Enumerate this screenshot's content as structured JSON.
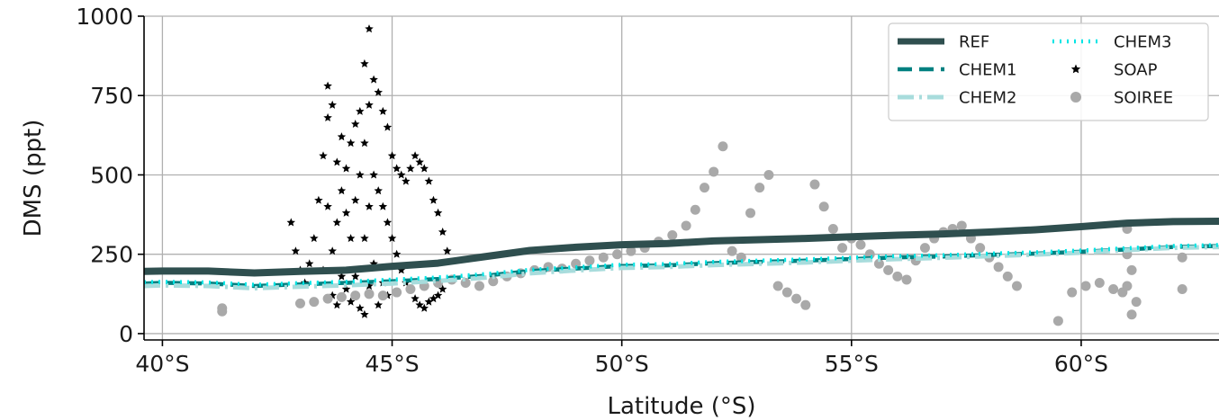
{
  "chart_data": {
    "type": "line",
    "title": "",
    "xlabel": "Latitude (°S)",
    "ylabel": "DMS (ppt)",
    "xlim": [
      39.6,
      63.0
    ],
    "ylim": [
      -20,
      1000
    ],
    "x_axis_reversed": false,
    "grid": true,
    "legend_position": "top-right",
    "legend_columns": 2,
    "xticks": [
      {
        "value": 40,
        "label": "40°S"
      },
      {
        "value": 45,
        "label": "45°S"
      },
      {
        "value": 50,
        "label": "50°S"
      },
      {
        "value": 55,
        "label": "55°S"
      },
      {
        "value": 60,
        "label": "60°S"
      }
    ],
    "yticks": [
      {
        "value": 0,
        "label": "0"
      },
      {
        "value": 250,
        "label": "250"
      },
      {
        "value": 500,
        "label": "500"
      },
      {
        "value": 750,
        "label": "750"
      },
      {
        "value": 1000,
        "label": "1000"
      }
    ],
    "series": [
      {
        "name": "REF",
        "kind": "line",
        "style": "solid",
        "color": "#2f4f4f",
        "x": [
          39.6,
          40.0,
          41.0,
          42.0,
          43.0,
          44.0,
          45.0,
          46.0,
          47.0,
          48.0,
          49.0,
          50.0,
          51.0,
          52.0,
          53.0,
          54.0,
          55.0,
          56.0,
          57.0,
          58.0,
          59.0,
          60.0,
          61.0,
          62.0,
          63.0
        ],
        "y": [
          196,
          197,
          197,
          191,
          196,
          200,
          212,
          222,
          242,
          262,
          272,
          280,
          284,
          292,
          296,
          300,
          305,
          310,
          314,
          320,
          327,
          337,
          348,
          353,
          354
        ]
      },
      {
        "name": "CHEM1",
        "kind": "line",
        "style": "dashed",
        "color": "#008080",
        "x": [
          39.6,
          40.0,
          41.0,
          42.0,
          43.0,
          44.0,
          45.0,
          46.0,
          47.0,
          48.0,
          49.0,
          50.0,
          51.0,
          52.0,
          53.0,
          54.0,
          55.0,
          56.0,
          57.0,
          58.0,
          59.0,
          60.0,
          61.0,
          62.0,
          63.0
        ],
        "y": [
          158,
          160,
          158,
          150,
          155,
          160,
          165,
          172,
          182,
          197,
          205,
          213,
          215,
          222,
          226,
          230,
          235,
          240,
          243,
          248,
          252,
          258,
          265,
          273,
          276
        ]
      },
      {
        "name": "CHEM2",
        "kind": "line",
        "style": "dashdot",
        "color": "#a8dcdc",
        "x": [
          39.6,
          40.0,
          41.0,
          42.0,
          43.0,
          44.0,
          45.0,
          46.0,
          47.0,
          48.0,
          49.0,
          50.0,
          51.0,
          52.0,
          53.0,
          54.0,
          55.0,
          56.0,
          57.0,
          58.0,
          59.0,
          60.0,
          61.0,
          62.0,
          63.0
        ],
        "y": [
          150,
          152,
          150,
          143,
          148,
          152,
          158,
          166,
          176,
          190,
          199,
          207,
          210,
          216,
          220,
          224,
          230,
          235,
          239,
          244,
          249,
          255,
          263,
          270,
          273
        ]
      },
      {
        "name": "CHEM3",
        "kind": "line",
        "style": "dotted",
        "color": "#00e5e5",
        "x": [
          39.6,
          40.0,
          41.0,
          42.0,
          43.0,
          44.0,
          45.0,
          46.0,
          47.0,
          48.0,
          49.0,
          50.0,
          51.0,
          52.0,
          53.0,
          54.0,
          55.0,
          56.0,
          57.0,
          58.0,
          59.0,
          60.0,
          61.0,
          62.0,
          63.0
        ],
        "y": [
          162,
          163,
          161,
          154,
          159,
          163,
          170,
          177,
          187,
          201,
          209,
          217,
          219,
          226,
          230,
          234,
          239,
          244,
          247,
          252,
          256,
          262,
          269,
          276,
          279
        ]
      },
      {
        "name": "SOAP",
        "kind": "scatter",
        "marker": "star",
        "color": "#000000",
        "x": [
          42.8,
          42.9,
          43.0,
          43.1,
          43.2,
          43.3,
          43.4,
          43.5,
          43.5,
          43.6,
          43.6,
          43.6,
          43.7,
          43.7,
          43.7,
          43.8,
          43.8,
          43.8,
          43.9,
          43.9,
          43.9,
          44.0,
          44.0,
          44.0,
          44.1,
          44.1,
          44.1,
          44.2,
          44.2,
          44.2,
          44.3,
          44.3,
          44.3,
          44.4,
          44.4,
          44.4,
          44.4,
          44.5,
          44.5,
          44.5,
          44.5,
          44.6,
          44.6,
          44.6,
          44.7,
          44.7,
          44.7,
          44.8,
          44.8,
          44.8,
          44.9,
          44.9,
          44.9,
          45.0,
          45.0,
          45.1,
          45.1,
          45.2,
          45.2,
          45.3,
          45.3,
          45.4,
          45.4,
          45.5,
          45.5,
          45.6,
          45.6,
          45.7,
          45.7,
          45.8,
          45.8,
          45.9,
          45.9,
          46.0,
          46.0,
          46.1,
          46.1,
          46.2
        ],
        "y": [
          350,
          260,
          200,
          160,
          220,
          300,
          420,
          560,
          200,
          680,
          780,
          400,
          720,
          260,
          120,
          540,
          350,
          90,
          620,
          450,
          180,
          520,
          380,
          140,
          600,
          300,
          100,
          660,
          420,
          180,
          700,
          500,
          80,
          850,
          600,
          300,
          60,
          960,
          720,
          400,
          150,
          800,
          500,
          220,
          760,
          450,
          90,
          700,
          400,
          160,
          650,
          350,
          120,
          560,
          300,
          520,
          250,
          500,
          200,
          480,
          160,
          520,
          140,
          560,
          110,
          540,
          90,
          520,
          80,
          480,
          100,
          420,
          110,
          380,
          120,
          320,
          140,
          260
        ]
      },
      {
        "name": "SOIREE",
        "kind": "scatter",
        "marker": "circle",
        "color": "#a9a9a9",
        "x": [
          41.3,
          41.3,
          43.0,
          43.3,
          43.6,
          43.9,
          44.2,
          44.5,
          44.8,
          45.1,
          45.4,
          45.7,
          46.0,
          46.3,
          46.6,
          46.9,
          47.2,
          47.5,
          47.8,
          48.1,
          48.4,
          48.7,
          49.0,
          49.3,
          49.6,
          49.9,
          50.2,
          50.5,
          50.8,
          51.1,
          51.4,
          51.6,
          51.8,
          52.0,
          52.2,
          52.4,
          52.6,
          52.8,
          53.0,
          53.2,
          53.4,
          53.6,
          53.8,
          54.0,
          54.2,
          54.4,
          54.6,
          54.8,
          55.0,
          55.2,
          55.4,
          55.6,
          55.8,
          56.0,
          56.2,
          56.4,
          56.6,
          56.8,
          57.0,
          57.2,
          57.4,
          57.6,
          57.8,
          58.0,
          58.2,
          58.4,
          58.6,
          59.5,
          59.8,
          60.1,
          60.4,
          60.7,
          60.9,
          61.0,
          61.0,
          61.0,
          61.1,
          61.1,
          61.2,
          62.2,
          62.2
        ],
        "y": [
          80,
          70,
          95,
          100,
          110,
          115,
          120,
          125,
          120,
          130,
          140,
          150,
          160,
          170,
          160,
          150,
          165,
          180,
          190,
          200,
          210,
          205,
          220,
          230,
          240,
          250,
          260,
          270,
          290,
          310,
          340,
          390,
          460,
          510,
          590,
          260,
          240,
          380,
          460,
          500,
          150,
          130,
          110,
          90,
          470,
          400,
          330,
          270,
          300,
          280,
          250,
          220,
          200,
          180,
          170,
          230,
          270,
          300,
          320,
          330,
          340,
          300,
          270,
          240,
          210,
          180,
          150,
          40,
          130,
          150,
          160,
          140,
          130,
          330,
          250,
          150,
          60,
          200,
          100,
          240,
          140
        ]
      }
    ]
  }
}
